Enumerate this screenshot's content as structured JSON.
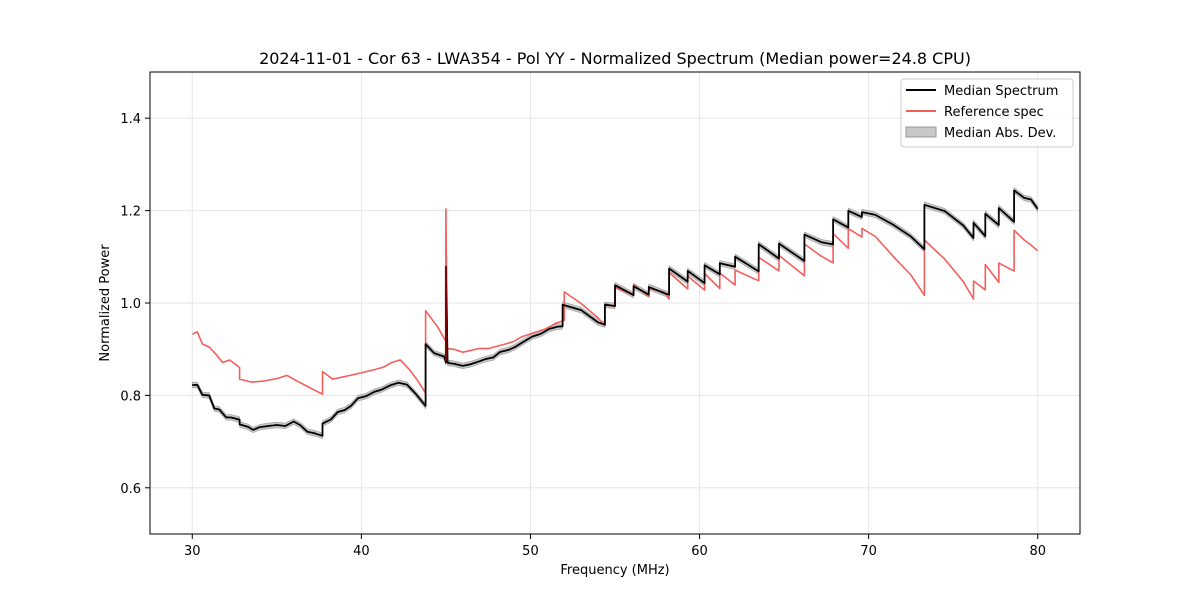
{
  "chart_data": {
    "type": "line",
    "title": "2024-11-01 - Cor 63 - LWA354 - Pol YY - Normalized Spectrum (Median power=24.8 CPU)",
    "xlabel": "Frequency (MHz)",
    "ylabel": "Normalized Power",
    "xlim": [
      27.5,
      82.5
    ],
    "ylim": [
      0.5,
      1.5
    ],
    "xticks": [
      30,
      40,
      50,
      60,
      70,
      80
    ],
    "yticks": [
      0.6,
      0.8,
      1.0,
      1.2,
      1.4
    ],
    "xtick_labels": [
      "30",
      "40",
      "50",
      "60",
      "70",
      "80"
    ],
    "ytick_labels": [
      "0.6",
      "0.8",
      "1.0",
      "1.2",
      "1.4"
    ],
    "grid": true,
    "legend_position": "top-right",
    "legend": [
      "Median Spectrum",
      "Reference spec",
      "Median Abs. Dev."
    ],
    "colors": {
      "median": "#000000",
      "reference": "#f25f5c",
      "mad_fill": "#c8c8c8",
      "mad_edge": "#9a9a9a",
      "spike": "#8b0000"
    },
    "mad_halfwidth": 0.006,
    "series": [
      {
        "name": "Median Spectrum",
        "x": [
          30.0,
          30.3,
          30.6,
          31.0,
          31.3,
          31.6,
          32.0,
          32.3,
          32.8,
          32.8,
          33.3,
          33.6,
          34.0,
          34.5,
          35.0,
          35.5,
          36.0,
          36.4,
          36.8,
          37.2,
          37.7,
          37.7,
          38.2,
          38.6,
          39.0,
          39.4,
          39.8,
          40.3,
          40.8,
          41.2,
          41.7,
          42.2,
          42.7,
          43.2,
          43.8,
          43.8,
          44.3,
          44.9,
          45.0,
          45.0,
          45.1,
          45.5,
          46.0,
          46.4,
          46.9,
          47.3,
          47.8,
          48.2,
          48.7,
          49.1,
          49.6,
          50.1,
          50.6,
          51.1,
          51.6,
          51.9,
          51.9,
          53.0,
          54.0,
          54.4,
          54.4,
          55.0,
          55.0,
          56.1,
          56.1,
          57.0,
          57.0,
          57.9,
          58.2,
          58.2,
          59.3,
          59.3,
          60.3,
          60.3,
          61.2,
          61.2,
          62.1,
          62.1,
          63.5,
          63.5,
          64.7,
          64.7,
          66.2,
          66.2,
          67.2,
          67.9,
          67.9,
          68.8,
          68.8,
          69.6,
          69.6,
          70.4,
          71.5,
          72.5,
          73.3,
          73.3,
          74.5,
          75.6,
          76.2,
          76.2,
          76.9,
          76.9,
          77.7,
          77.7,
          78.6,
          78.6,
          79.2,
          79.6,
          80.0
        ],
        "values": [
          0.815,
          0.82,
          0.81,
          0.795,
          0.78,
          0.77,
          0.76,
          0.755,
          0.748,
          0.73,
          0.728,
          0.725,
          0.728,
          0.73,
          0.732,
          0.73,
          0.74,
          0.735,
          0.725,
          0.715,
          0.71,
          0.74,
          0.75,
          0.76,
          0.77,
          0.78,
          0.79,
          0.795,
          0.805,
          0.812,
          0.82,
          0.825,
          0.82,
          0.8,
          0.78,
          0.915,
          0.895,
          0.88,
          0.875,
          1.08,
          0.87,
          0.865,
          0.86,
          0.87,
          0.875,
          0.88,
          0.885,
          0.89,
          0.895,
          0.905,
          0.915,
          0.925,
          0.93,
          0.94,
          0.945,
          0.95,
          1.0,
          0.985,
          0.96,
          0.955,
          1.0,
          0.99,
          1.035,
          1.02,
          1.04,
          1.015,
          1.035,
          1.02,
          1.015,
          1.075,
          1.05,
          1.07,
          1.045,
          1.08,
          1.065,
          1.09,
          1.075,
          1.1,
          1.07,
          1.125,
          1.1,
          1.13,
          1.095,
          1.15,
          1.135,
          1.13,
          1.185,
          1.16,
          1.2,
          1.19,
          1.2,
          1.19,
          1.165,
          1.14,
          1.115,
          1.215,
          1.195,
          1.17,
          1.14,
          1.17,
          1.145,
          1.19,
          1.165,
          1.205,
          1.175,
          1.24,
          1.23,
          1.22,
          1.205
        ]
      },
      {
        "name": "Reference spec",
        "x": [
          30.0,
          30.3,
          30.6,
          31.0,
          31.4,
          31.8,
          32.2,
          32.6,
          32.8,
          32.8,
          33.5,
          34.2,
          35.0,
          35.6,
          36.2,
          36.7,
          37.2,
          37.7,
          37.7,
          38.3,
          38.8,
          39.3,
          39.8,
          40.3,
          40.8,
          41.3,
          41.8,
          42.3,
          42.8,
          43.3,
          43.8,
          43.8,
          44.5,
          44.98,
          45.0,
          45.0,
          45.08,
          45.5,
          46.0,
          46.5,
          47.0,
          47.5,
          48.0,
          48.5,
          49.0,
          49.5,
          50.0,
          50.5,
          51.0,
          51.5,
          52.0,
          52.0,
          53.0,
          54.0,
          54.4,
          54.4,
          55.0,
          55.0,
          56.1,
          56.1,
          57.0,
          57.0,
          57.9,
          58.2,
          58.2,
          59.3,
          59.3,
          60.3,
          60.3,
          61.2,
          61.2,
          62.1,
          62.1,
          63.5,
          63.5,
          64.7,
          64.7,
          66.2,
          66.2,
          67.2,
          67.9,
          67.9,
          68.8,
          68.8,
          69.6,
          69.6,
          70.4,
          71.5,
          72.5,
          73.3,
          73.3,
          74.5,
          75.6,
          76.2,
          76.2,
          76.9,
          76.9,
          77.7,
          77.7,
          78.6,
          78.6,
          79.2,
          79.6,
          80.0
        ],
        "values": [
          0.925,
          0.935,
          0.92,
          0.9,
          0.885,
          0.88,
          0.872,
          0.862,
          0.86,
          0.828,
          0.83,
          0.835,
          0.838,
          0.84,
          0.835,
          0.825,
          0.815,
          0.805,
          0.85,
          0.835,
          0.84,
          0.845,
          0.85,
          0.855,
          0.86,
          0.865,
          0.875,
          0.88,
          0.86,
          0.835,
          0.805,
          0.98,
          0.95,
          0.92,
          0.915,
          1.2,
          0.905,
          0.9,
          0.895,
          0.9,
          0.905,
          0.905,
          0.91,
          0.915,
          0.92,
          0.93,
          0.935,
          0.94,
          0.945,
          0.955,
          0.96,
          1.02,
          0.995,
          0.965,
          0.955,
          1.0,
          0.99,
          1.035,
          1.02,
          1.04,
          1.015,
          1.035,
          1.02,
          1.01,
          1.07,
          1.03,
          1.055,
          1.025,
          1.06,
          1.035,
          1.065,
          1.04,
          1.075,
          1.045,
          1.095,
          1.07,
          1.1,
          1.06,
          1.125,
          1.1,
          1.09,
          1.15,
          1.12,
          1.165,
          1.145,
          1.16,
          1.14,
          1.1,
          1.06,
          1.02,
          1.14,
          1.095,
          1.05,
          1.005,
          1.045,
          1.025,
          1.08,
          1.045,
          1.09,
          1.065,
          1.155,
          1.14,
          1.125,
          1.11
        ]
      }
    ]
  }
}
